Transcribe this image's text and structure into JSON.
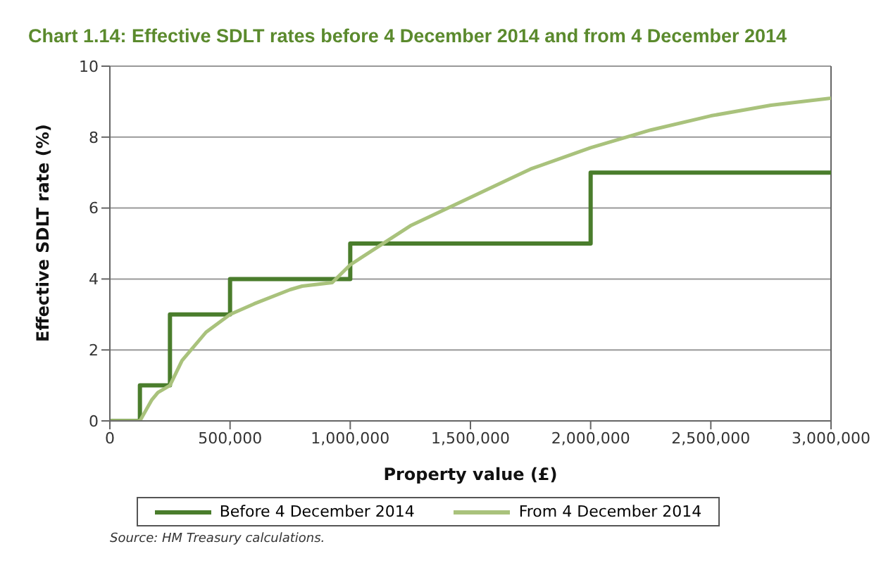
{
  "chart_data": {
    "type": "line",
    "title": "Chart 1.14: Effective SDLT rates before 4 December 2014 and from 4 December 2014",
    "xlabel": "Property value (£)",
    "ylabel": "Effective SDLT rate (%)",
    "series": [
      {
        "name": "Before 4 December 2014",
        "type": "step",
        "color": "#4a7d2c",
        "x": [
          0,
          125000,
          250000,
          500000,
          1000000,
          2000000,
          3000000
        ],
        "values": [
          0,
          1,
          3,
          4,
          5,
          7,
          7
        ]
      },
      {
        "name": "From 4 December 2014",
        "type": "line",
        "color": "#a9c27c",
        "x": [
          0,
          125000,
          150000,
          175000,
          200000,
          250000,
          300000,
          400000,
          500000,
          600000,
          750000,
          800000,
          925000,
          1000000,
          1250000,
          1500000,
          1750000,
          2000000,
          2250000,
          2500000,
          2750000,
          3000000
        ],
        "values": [
          0,
          0,
          0.3,
          0.6,
          0.8,
          1,
          1.7,
          2.5,
          3,
          3.3,
          3.7,
          3.8,
          3.9,
          4.4,
          5.5,
          6.3,
          7.1,
          7.7,
          8.2,
          8.6,
          8.9,
          9.1
        ]
      }
    ],
    "xlim": [
      0,
      3000000
    ],
    "xticks": [
      {
        "value": 0,
        "label": "0"
      },
      {
        "value": 500000,
        "label": "500,000"
      },
      {
        "value": 1000000,
        "label": "1,000,000"
      },
      {
        "value": 1500000,
        "label": "1,500,000"
      },
      {
        "value": 2000000,
        "label": "2,000,000"
      },
      {
        "value": 2500000,
        "label": "2,500,000"
      },
      {
        "value": 3000000,
        "label": "3,000,000"
      }
    ],
    "ylim": [
      0,
      10
    ],
    "yticks": [
      0,
      2,
      4,
      6,
      8,
      10
    ],
    "grid": "y",
    "legend": "bottom",
    "marker": "none",
    "line_style": "solid",
    "annotations": [
      "Source: HM Treasury calculations."
    ]
  }
}
